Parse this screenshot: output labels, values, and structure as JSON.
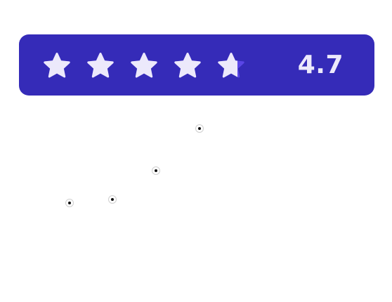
{
  "rating": {
    "value_text": "4.7",
    "value": 4.7,
    "max_stars": 5,
    "colors": {
      "card_background": "#352bb8",
      "star_filled": "#ece9fb",
      "star_empty": "#5a46e6",
      "value_text": "#ece9fb"
    }
  },
  "markers": {
    "count": 4,
    "icon": "dot-marker-icon"
  }
}
